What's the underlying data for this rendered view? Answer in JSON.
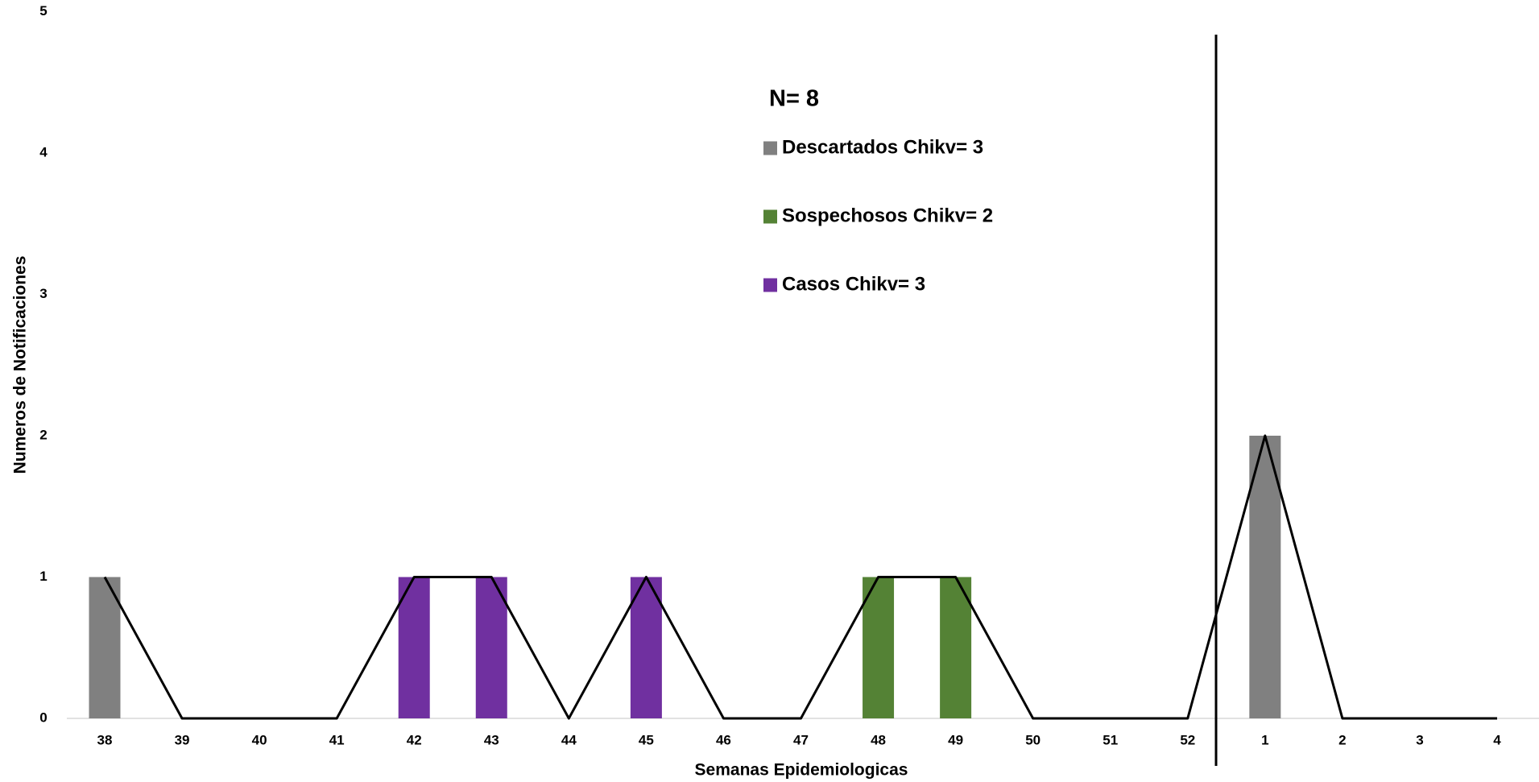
{
  "chart_data": {
    "type": "bar",
    "legend_title": "N= 8",
    "x_label": "Semanas Epidemiologicas",
    "y_label": "Numeros de Notificaciones",
    "categories": [
      "38",
      "39",
      "40",
      "41",
      "42",
      "43",
      "44",
      "45",
      "46",
      "47",
      "48",
      "49",
      "50",
      "51",
      "52",
      "1",
      "2",
      "3",
      "4"
    ],
    "series": [
      {
        "name": "Descartados Chikv= 3",
        "color": "#808080",
        "values": [
          1,
          null,
          null,
          null,
          null,
          null,
          null,
          null,
          null,
          null,
          null,
          null,
          null,
          null,
          null,
          2,
          null,
          null,
          null
        ]
      },
      {
        "name": "Sospechosos Chikv= 2",
        "color": "#548235",
        "values": [
          null,
          null,
          null,
          null,
          null,
          null,
          null,
          null,
          null,
          null,
          1,
          1,
          null,
          null,
          null,
          null,
          null,
          null,
          null
        ]
      },
      {
        "name": "Casos Chikv= 3",
        "color": "#7030a0",
        "values": [
          null,
          null,
          null,
          null,
          1,
          1,
          null,
          1,
          null,
          null,
          null,
          null,
          null,
          null,
          null,
          null,
          null,
          null,
          null
        ]
      }
    ],
    "line": {
      "color": "#000000",
      "values": [
        1,
        0,
        0,
        0,
        1,
        1,
        0,
        1,
        0,
        0,
        1,
        1,
        0,
        0,
        0,
        2,
        0,
        0,
        0
      ]
    },
    "ylim": [
      0,
      5
    ],
    "yticks": [
      0,
      1,
      2,
      3,
      4,
      5
    ],
    "grid": false
  }
}
